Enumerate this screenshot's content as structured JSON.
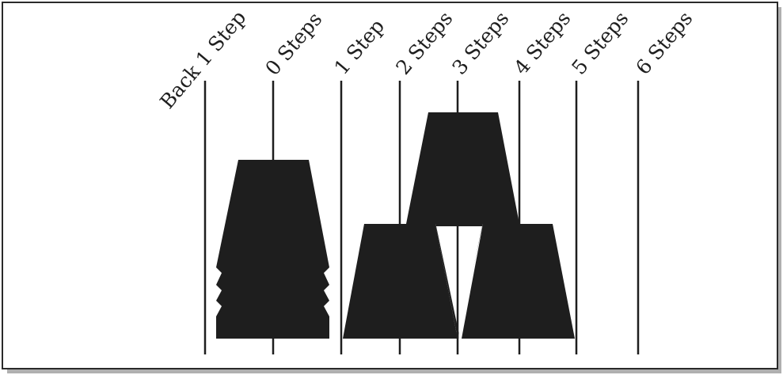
{
  "diagram": {
    "step_labels": [
      "Back 1 Step",
      "0 Steps",
      "1 Step",
      "2 Steps",
      "3 Steps",
      "4 Steps",
      "5 Steps",
      "6 Steps"
    ],
    "colors": {
      "shape_fill": "#1e1e1e",
      "line": "#1e1e1e",
      "frame": "#2a2a2a",
      "shadow": "#b0b0b0"
    }
  }
}
